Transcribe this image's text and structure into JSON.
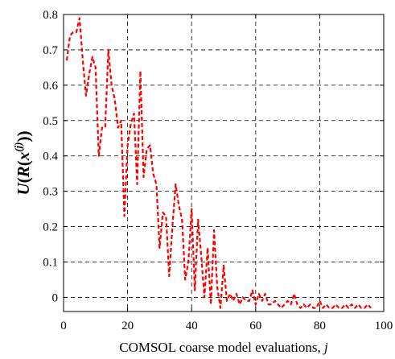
{
  "chart_data": {
    "type": "line",
    "title": "",
    "xlabel": "COMSOL coarse model evaluations, j",
    "xlabel_parts": {
      "text": "COMSOL coarse model evaluations, ",
      "var": "j"
    },
    "ylabel_parts": {
      "U": "U",
      "open1": "(",
      "R": "R",
      "open2": "(",
      "x": "x",
      "sup": "(j)",
      "close": "))"
    },
    "xlim": [
      0,
      100
    ],
    "ylim": [
      -0.04,
      0.8
    ],
    "xticks": [
      0,
      20,
      40,
      60,
      80,
      100
    ],
    "yticks": [
      0,
      0.1,
      0.2,
      0.3,
      0.4,
      0.5,
      0.6,
      0.7,
      0.8
    ],
    "xtick_labels": [
      "0",
      "20",
      "40",
      "60",
      "80",
      "100"
    ],
    "ytick_labels": [
      "0",
      "0.1",
      "0.2",
      "0.3",
      "0.4",
      "0.5",
      "0.6",
      "0.7",
      "0.8"
    ],
    "grid": true,
    "series": [
      {
        "line_color": "#ff0000",
        "line_style": "dashed",
        "x": [
          1,
          2,
          3,
          4,
          5,
          6,
          7,
          8,
          9,
          10,
          11,
          12,
          13,
          14,
          15,
          16,
          17,
          18,
          19,
          20,
          21,
          22,
          23,
          24,
          25,
          26,
          27,
          28,
          29,
          30,
          31,
          32,
          33,
          34,
          35,
          36,
          37,
          38,
          39,
          40,
          41,
          42,
          43,
          44,
          45,
          46,
          47,
          48,
          49,
          50,
          51,
          52,
          53,
          54,
          55,
          56,
          57,
          58,
          59,
          60,
          61,
          62,
          63,
          64,
          65,
          66,
          67,
          68,
          69,
          70,
          71,
          72,
          73,
          74,
          75,
          76,
          77,
          78,
          79,
          80,
          81,
          82,
          83,
          84,
          85,
          86,
          87,
          88,
          89,
          90,
          91,
          92,
          93,
          94,
          95,
          96
        ],
        "y": [
          0.67,
          0.74,
          0.75,
          0.75,
          0.79,
          0.67,
          0.57,
          0.63,
          0.68,
          0.65,
          0.4,
          0.48,
          0.48,
          0.7,
          0.6,
          0.56,
          0.48,
          0.5,
          0.23,
          0.43,
          0.49,
          0.52,
          0.32,
          0.64,
          0.34,
          0.42,
          0.43,
          0.35,
          0.32,
          0.14,
          0.24,
          0.23,
          0.06,
          0.2,
          0.32,
          0.26,
          0.22,
          0.05,
          0.1,
          0.25,
          0.02,
          0.22,
          0.12,
          0.0,
          0.14,
          -0.02,
          0.19,
          0.03,
          -0.03,
          0.09,
          -0.01,
          0.01,
          -0.01,
          0.01,
          -0.02,
          0.0,
          -0.01,
          -0.01,
          0.02,
          -0.02,
          0.01,
          -0.01,
          0.01,
          -0.02,
          -0.02,
          -0.01,
          -0.02,
          -0.03,
          -0.02,
          -0.01,
          -0.02,
          0.01,
          -0.02,
          -0.03,
          -0.02,
          -0.03,
          -0.02,
          -0.03,
          -0.03,
          -0.01,
          -0.03,
          -0.02,
          -0.03,
          -0.03,
          -0.02,
          -0.03,
          -0.03,
          -0.02,
          -0.03,
          -0.02,
          -0.03,
          -0.02,
          -0.03,
          -0.03,
          -0.02,
          -0.03
        ]
      }
    ]
  }
}
